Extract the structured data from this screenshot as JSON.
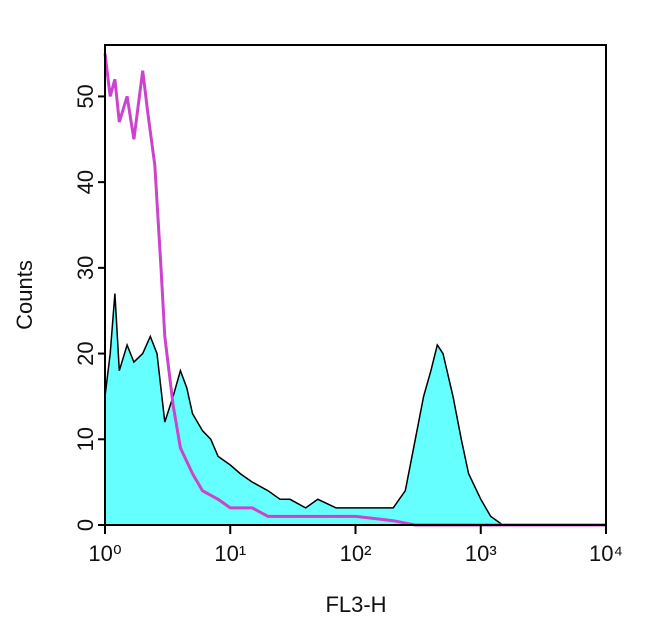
{
  "chart_data": {
    "type": "histogram",
    "xlabel": "FL3-H",
    "ylabel": "Counts",
    "xscale": "log",
    "xlim": [
      1,
      10000
    ],
    "ylim": [
      0,
      56
    ],
    "xticks": [
      {
        "value": 1,
        "label": "10⁰"
      },
      {
        "value": 10,
        "label": "10¹"
      },
      {
        "value": 100,
        "label": "10²"
      },
      {
        "value": 1000,
        "label": "10³"
      },
      {
        "value": 10000,
        "label": "10⁴"
      }
    ],
    "yticks": [
      0,
      10,
      20,
      30,
      40,
      50
    ],
    "series": [
      {
        "color": "#66ffff",
        "outline": "#000000",
        "filled": true,
        "x": [
          1,
          1.1,
          1.2,
          1.3,
          1.5,
          1.7,
          2,
          2.3,
          2.6,
          3,
          3.5,
          4,
          4.5,
          5,
          6,
          7,
          8,
          10,
          12,
          15,
          20,
          25,
          30,
          40,
          50,
          70,
          100,
          150,
          200,
          250,
          300,
          350,
          400,
          450,
          500,
          600,
          700,
          800,
          1000,
          1200,
          1500,
          2000,
          5000,
          10000
        ],
        "values": [
          15,
          20,
          27,
          18,
          21,
          19,
          20,
          22,
          20,
          12,
          15,
          18,
          16,
          13,
          11,
          10,
          8,
          7,
          6,
          5,
          4,
          3,
          3,
          2,
          3,
          2,
          2,
          2,
          2,
          4,
          10,
          15,
          18,
          21,
          20,
          15,
          10,
          6,
          3,
          1,
          0,
          0,
          0,
          0
        ]
      },
      {
        "color": "#cc44cc",
        "filled": false,
        "x": [
          1,
          1.1,
          1.2,
          1.3,
          1.5,
          1.7,
          2,
          2.2,
          2.5,
          2.8,
          3,
          3.5,
          4,
          5,
          6,
          8,
          10,
          15,
          20,
          30,
          50,
          100,
          200,
          300,
          1000,
          10000
        ],
        "values": [
          55,
          50,
          52,
          47,
          50,
          45,
          53,
          48,
          42,
          30,
          22,
          14,
          9,
          6,
          4,
          3,
          2,
          2,
          1,
          1,
          1,
          1,
          0.5,
          0,
          0,
          0
        ]
      }
    ]
  }
}
